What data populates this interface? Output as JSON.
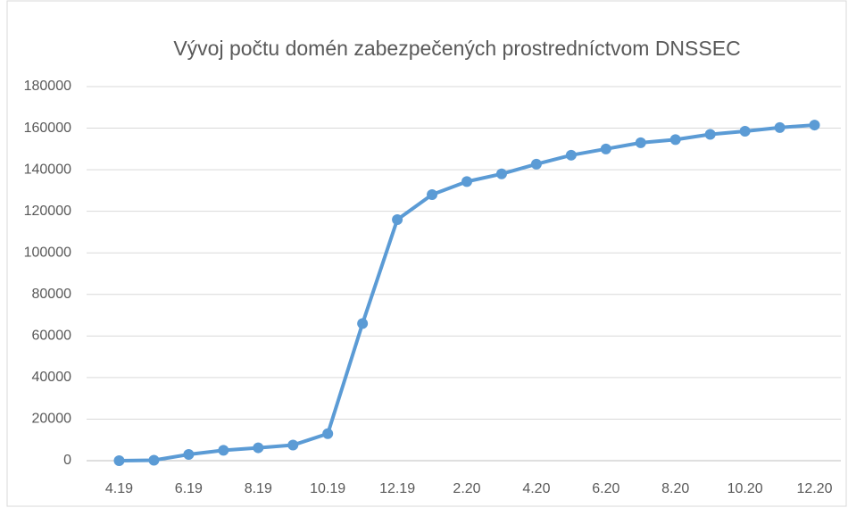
{
  "chart_data": {
    "type": "line",
    "title": "Vývoj počtu domén zabezpečených prostredníctvom DNSSEC",
    "categories": [
      "4.19",
      null,
      "6.19",
      null,
      "8.19",
      null,
      "10.19",
      null,
      "12.19",
      null,
      "2.20",
      null,
      "4.20",
      null,
      "6.20",
      null,
      "8.20",
      null,
      "10.20",
      null,
      "12.20"
    ],
    "series": [
      {
        "name": "DNSSEC",
        "color": "#5b9bd5",
        "values": [
          0,
          200,
          3000,
          5000,
          6200,
          7500,
          13000,
          66000,
          116000,
          128000,
          134300,
          138000,
          142700,
          147000,
          150000,
          153000,
          154500,
          157000,
          158500,
          160300,
          161500
        ]
      }
    ],
    "ylim": [
      0,
      180000
    ],
    "yticks": [
      0,
      20000,
      40000,
      60000,
      80000,
      100000,
      120000,
      140000,
      160000,
      180000
    ],
    "grid": true
  }
}
